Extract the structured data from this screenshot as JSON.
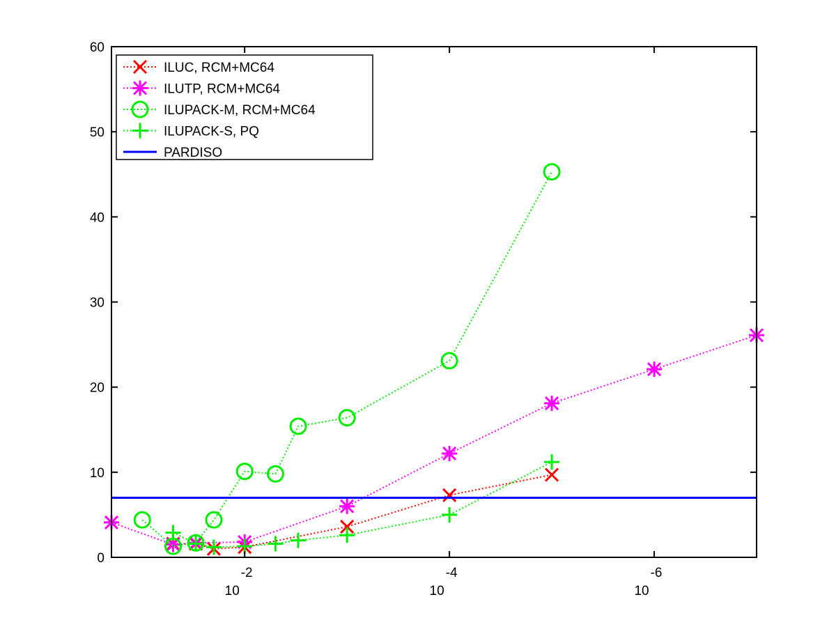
{
  "chart_data": {
    "type": "line",
    "xscale": "log",
    "xreversed": true,
    "xlim": [
      0.2,
      1e-07
    ],
    "ylim": [
      0,
      60
    ],
    "yticks": [
      0,
      10,
      20,
      30,
      40,
      50,
      60
    ],
    "ytick_labels": [
      "0",
      "10",
      "20",
      "30",
      "40",
      "50",
      "60"
    ],
    "xticks": [
      0.01,
      0.0001,
      1e-06
    ],
    "xtick_labels": [
      {
        "base": "10",
        "exp": "-2"
      },
      {
        "base": "10",
        "exp": "-4"
      },
      {
        "base": "10",
        "exp": "-6"
      }
    ],
    "grid": false,
    "legend_position": "top-left",
    "series": [
      {
        "name": "ILUC, RCM+MC64",
        "color": "#ff0000",
        "marker": "x",
        "line": "dotted",
        "x": [
          0.05,
          0.03,
          0.02,
          0.01,
          0.001,
          0.0001,
          1e-05
        ],
        "y": [
          1.6,
          1.6,
          1.0,
          1.2,
          3.6,
          7.3,
          9.7
        ]
      },
      {
        "name": "ILUTP, RCM+MC64",
        "color": "#ff00ff",
        "marker": "asterisk",
        "line": "dotted",
        "x": [
          0.2,
          0.05,
          0.03,
          0.01,
          0.001,
          0.0001,
          1e-05,
          1e-06,
          1e-07
        ],
        "y": [
          4.1,
          1.5,
          1.7,
          1.8,
          6.0,
          12.2,
          18.1,
          22.1,
          26.1
        ]
      },
      {
        "name": "ILUPACK-M, RCM+MC64",
        "color": "#00ee00",
        "marker": "circle",
        "line": "dotted",
        "x": [
          0.1,
          0.05,
          0.03,
          0.02,
          0.01,
          0.005,
          0.003,
          0.001,
          0.0001,
          1e-05
        ],
        "y": [
          4.4,
          1.3,
          1.7,
          4.4,
          10.1,
          9.8,
          15.4,
          16.4,
          23.1,
          45.3
        ]
      },
      {
        "name": "ILUPACK-S, PQ",
        "color": "#00ee00",
        "marker": "plus",
        "line": "dotted",
        "x": [
          0.05,
          0.03,
          0.02,
          0.01,
          0.005,
          0.003,
          0.001,
          0.0001,
          1e-05
        ],
        "y": [
          2.9,
          1.6,
          1.2,
          1.3,
          1.6,
          2.0,
          2.6,
          5.0,
          11.2
        ]
      },
      {
        "name": "PARDISO",
        "color": "#0000ff",
        "marker": "none",
        "line": "solid",
        "x": [
          0.2,
          1e-07
        ],
        "y": [
          7.0,
          7.0
        ]
      }
    ]
  }
}
